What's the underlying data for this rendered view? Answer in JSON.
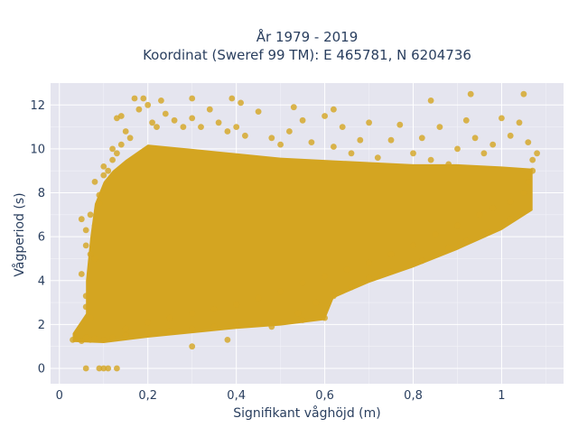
{
  "chart_data": {
    "type": "scatter",
    "title_line1": "År 1979 - 2019",
    "title_line2": "Koordinat (Sweref 99 TM): E 465781, N 6204736",
    "xlabel": "Signifikant våghöjd (m)",
    "ylabel": "Vågperiod (s)",
    "xlim": [
      -0.02,
      1.14
    ],
    "ylim": [
      -0.7,
      13
    ],
    "x_ticks": [
      0,
      0.2,
      0.4,
      0.6,
      0.8,
      1
    ],
    "x_tick_labels": [
      "0",
      "0,2",
      "0,4",
      "0,6",
      "0,8",
      "1"
    ],
    "y_ticks": [
      0,
      2,
      4,
      6,
      8,
      10,
      12
    ],
    "y_tick_labels": [
      "0",
      "2",
      "4",
      "6",
      "8",
      "10",
      "12"
    ],
    "grid": true,
    "legend": "none",
    "background_color": "#e5e5ef",
    "marker_color": "#d4a521",
    "series": [
      {
        "points": [
          [
            0.03,
            1.3
          ],
          [
            0.05,
            1.25
          ],
          [
            0.06,
            1.4
          ],
          [
            0.07,
            1.3
          ],
          [
            0.08,
            1.35
          ],
          [
            0.1,
            1.3
          ],
          [
            0.12,
            1.4
          ],
          [
            0.15,
            1.5
          ],
          [
            0.2,
            1.6
          ],
          [
            0.25,
            1.7
          ],
          [
            0.3,
            1.8
          ],
          [
            0.35,
            1.9
          ],
          [
            0.4,
            2.0
          ],
          [
            0.45,
            2.05
          ],
          [
            0.5,
            2.1
          ],
          [
            0.55,
            2.2
          ],
          [
            0.6,
            2.3
          ],
          [
            0.06,
            0.0
          ],
          [
            0.09,
            0.0
          ],
          [
            0.1,
            0.0
          ],
          [
            0.11,
            0.0
          ],
          [
            0.13,
            0.0
          ],
          [
            0.05,
            6.8
          ],
          [
            0.06,
            6.3
          ],
          [
            0.07,
            7.0
          ],
          [
            0.06,
            5.6
          ],
          [
            0.05,
            4.3
          ],
          [
            0.07,
            5.2
          ],
          [
            0.06,
            3.3
          ],
          [
            0.07,
            2.3
          ],
          [
            0.06,
            2.8
          ],
          [
            0.08,
            6.5
          ],
          [
            0.08,
            8.5
          ],
          [
            0.09,
            7.9
          ],
          [
            0.09,
            7.5
          ],
          [
            0.08,
            5.0
          ],
          [
            0.1,
            9.2
          ],
          [
            0.1,
            8.8
          ],
          [
            0.11,
            9.0
          ],
          [
            0.12,
            9.5
          ],
          [
            0.12,
            10.0
          ],
          [
            0.13,
            9.8
          ],
          [
            0.14,
            10.2
          ],
          [
            0.13,
            11.4
          ],
          [
            0.14,
            11.5
          ],
          [
            0.15,
            10.8
          ],
          [
            0.16,
            10.5
          ],
          [
            0.17,
            12.3
          ],
          [
            0.19,
            12.3
          ],
          [
            0.18,
            11.8
          ],
          [
            0.2,
            12.0
          ],
          [
            0.21,
            11.2
          ],
          [
            0.22,
            11.0
          ],
          [
            0.24,
            11.6
          ],
          [
            0.23,
            12.2
          ],
          [
            0.26,
            11.3
          ],
          [
            0.28,
            11.0
          ],
          [
            0.3,
            11.4
          ],
          [
            0.32,
            11.0
          ],
          [
            0.34,
            11.8
          ],
          [
            0.36,
            11.2
          ],
          [
            0.38,
            10.8
          ],
          [
            0.4,
            11.0
          ],
          [
            0.42,
            10.6
          ],
          [
            0.45,
            11.7
          ],
          [
            0.48,
            10.5
          ],
          [
            0.5,
            10.2
          ],
          [
            0.52,
            10.8
          ],
          [
            0.55,
            11.3
          ],
          [
            0.57,
            10.3
          ],
          [
            0.6,
            11.5
          ],
          [
            0.62,
            10.1
          ],
          [
            0.64,
            11.0
          ],
          [
            0.66,
            9.8
          ],
          [
            0.68,
            10.4
          ],
          [
            0.7,
            11.2
          ],
          [
            0.72,
            9.6
          ],
          [
            0.75,
            10.4
          ],
          [
            0.77,
            11.1
          ],
          [
            0.8,
            9.8
          ],
          [
            0.82,
            10.5
          ],
          [
            0.84,
            9.5
          ],
          [
            0.86,
            11.0
          ],
          [
            0.88,
            9.3
          ],
          [
            0.9,
            10.0
          ],
          [
            0.92,
            11.3
          ],
          [
            0.94,
            10.5
          ],
          [
            0.96,
            9.8
          ],
          [
            0.98,
            10.2
          ],
          [
            1.0,
            11.4
          ],
          [
            1.02,
            10.6
          ],
          [
            1.04,
            11.2
          ],
          [
            1.06,
            10.3
          ],
          [
            1.08,
            9.8
          ],
          [
            0.3,
            12.3
          ],
          [
            0.39,
            12.3
          ],
          [
            0.41,
            12.1
          ],
          [
            0.53,
            11.9
          ],
          [
            0.62,
            11.8
          ],
          [
            0.84,
            12.2
          ],
          [
            0.93,
            12.5
          ],
          [
            1.05,
            12.5
          ],
          [
            1.07,
            9.5
          ],
          [
            1.07,
            9.0
          ],
          [
            1.06,
            8.5
          ],
          [
            1.05,
            8.0
          ],
          [
            1.02,
            7.6
          ],
          [
            0.98,
            7.3
          ],
          [
            0.95,
            7.0
          ],
          [
            0.9,
            6.5
          ],
          [
            0.85,
            6.1
          ],
          [
            0.8,
            5.6
          ],
          [
            0.75,
            5.2
          ],
          [
            0.7,
            4.8
          ],
          [
            0.65,
            4.5
          ],
          [
            0.6,
            4.2
          ],
          [
            0.55,
            3.9
          ],
          [
            0.5,
            3.5
          ],
          [
            0.45,
            3.2
          ],
          [
            0.4,
            2.9
          ],
          [
            0.35,
            2.7
          ],
          [
            0.3,
            2.5
          ],
          [
            0.25,
            2.3
          ],
          [
            0.2,
            2.1
          ],
          [
            0.15,
            1.8
          ],
          [
            0.62,
            3.3
          ],
          [
            0.58,
            3.0
          ],
          [
            0.54,
            2.5
          ],
          [
            0.66,
            3.7
          ],
          [
            0.7,
            4.1
          ],
          [
            0.75,
            4.4
          ],
          [
            0.82,
            4.9
          ],
          [
            0.88,
            5.5
          ],
          [
            0.92,
            5.8
          ],
          [
            0.97,
            6.2
          ],
          [
            1.02,
            6.8
          ],
          [
            0.3,
            1.0
          ],
          [
            0.38,
            1.3
          ],
          [
            0.48,
            1.9
          ]
        ]
      }
    ]
  }
}
